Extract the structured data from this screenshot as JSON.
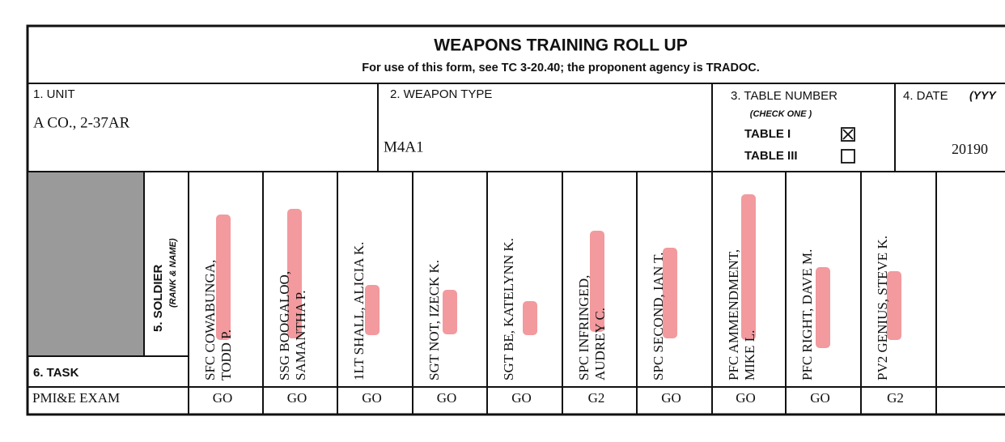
{
  "header": {
    "title": "WEAPONS TRAINING ROLL UP",
    "subtitle": "For use of this form, see TC 3-20.40; the proponent agency is TRADOC."
  },
  "fields": {
    "unit": {
      "label": "1. UNIT",
      "value": "A CO., 2-37AR"
    },
    "weapon": {
      "label": "2. WEAPON TYPE",
      "value": "M4A1"
    },
    "table": {
      "label": "3. TABLE NUMBER",
      "note": "(CHECK ONE )",
      "options": [
        {
          "label": "TABLE I",
          "checked": true
        },
        {
          "label": "TABLE III",
          "checked": false
        }
      ]
    },
    "date": {
      "label": "4. DATE",
      "note": "(YYY",
      "value": "20190"
    }
  },
  "soldier_header": {
    "label": "5. SOLDIER",
    "note": "(RANK & NAME)"
  },
  "task_header": "6. TASK",
  "soldiers": [
    [
      "SFC COWABUNGA,",
      "TODD P."
    ],
    [
      "SSG BOOGALOO,",
      "SAMANTHA P."
    ],
    [
      "1LT SHALL, ALICIA K."
    ],
    [
      "SGT NOT, IZECK K."
    ],
    [
      "SGT BE, KATELYNN K."
    ],
    [
      "SPC INFRINGED,",
      "AUDREY C."
    ],
    [
      "SPC SECOND, IAN T."
    ],
    [
      "PFC AMMENDMENT,",
      "MIKE L."
    ],
    [
      "PFC RIGHT, DAVE M."
    ],
    [
      "PV2 GENIUS, STEVE K."
    ]
  ],
  "rows": [
    {
      "task": "PMI&E EXAM",
      "results": [
        "GO",
        "GO",
        "GO",
        "GO",
        "GO",
        "G2",
        "GO",
        "GO",
        "GO",
        "G2"
      ]
    }
  ]
}
